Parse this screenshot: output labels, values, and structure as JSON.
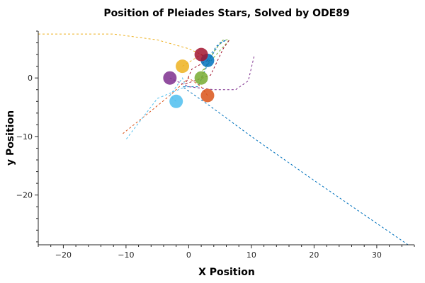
{
  "chart_data": {
    "type": "scatter",
    "title": "Position of Pleiades Stars, Solved by ODE89",
    "xlabel": "X Position",
    "ylabel": "y Position",
    "xlim": [
      -24,
      36
    ],
    "ylim": [
      -28.5,
      8
    ],
    "xticks": [
      -20,
      -10,
      0,
      10,
      20,
      30
    ],
    "yticks": [
      -20,
      -10,
      0
    ],
    "grid": false,
    "legend": "none",
    "series": [
      {
        "color": "#0072BD",
        "marker": [
          3,
          3
        ],
        "trajectory": [
          [
            3,
            3
          ],
          [
            3.5,
            4
          ],
          [
            4.5,
            5.5
          ],
          [
            6,
            6.5
          ],
          [
            5,
            6
          ],
          [
            3.5,
            3.5
          ],
          [
            1.5,
            -1.5
          ],
          [
            -1,
            -1.5
          ],
          [
            3,
            -4.5
          ],
          [
            10,
            -10
          ],
          [
            20,
            -17.5
          ],
          [
            35,
            -28.5
          ]
        ]
      },
      {
        "color": "#D95319",
        "marker": [
          3,
          -3
        ],
        "trajectory": [
          [
            3,
            -3
          ],
          [
            2,
            -1.5
          ],
          [
            0,
            0
          ],
          [
            -3,
            -3
          ],
          [
            -7,
            -6.5
          ],
          [
            -10.5,
            -9.5
          ]
        ]
      },
      {
        "color": "#EDB120",
        "marker": [
          -1,
          2
        ],
        "trajectory": [
          [
            -1,
            2
          ],
          [
            2,
            4
          ],
          [
            3,
            3.5
          ],
          [
            0,
            5
          ],
          [
            -5,
            6.5
          ],
          [
            -12,
            7.5
          ],
          [
            -24,
            7.5
          ]
        ]
      },
      {
        "color": "#7E2F8E",
        "marker": [
          -3,
          0
        ],
        "trajectory": [
          [
            -3,
            0
          ],
          [
            0,
            -1.5
          ],
          [
            4,
            -2
          ],
          [
            7.5,
            -2
          ],
          [
            9.5,
            -0.5
          ],
          [
            10.5,
            4
          ]
        ]
      },
      {
        "color": "#77AC30",
        "marker": [
          2,
          0
        ],
        "trajectory": [
          [
            2,
            0
          ],
          [
            2.5,
            1.5
          ],
          [
            4,
            4.5
          ],
          [
            5.5,
            6.5
          ],
          [
            6.5,
            6.5
          ],
          [
            4,
            3.5
          ],
          [
            2,
            1
          ]
        ]
      },
      {
        "color": "#4DBEEE",
        "marker": [
          -2,
          -4
        ],
        "trajectory": [
          [
            -2,
            -4
          ],
          [
            -3,
            -3
          ],
          [
            -1,
            0
          ],
          [
            -0.5,
            -1.5
          ],
          [
            -5,
            -3.5
          ],
          [
            -10,
            -10.5
          ]
        ]
      },
      {
        "color": "#A2142F",
        "marker": [
          2,
          4
        ],
        "trajectory": [
          [
            2,
            4
          ],
          [
            3,
            3
          ],
          [
            0.5,
            1.5
          ],
          [
            -0.5,
            -1
          ],
          [
            3.5,
            0.5
          ],
          [
            5.5,
            5
          ],
          [
            6.5,
            6.5
          ]
        ]
      }
    ]
  }
}
